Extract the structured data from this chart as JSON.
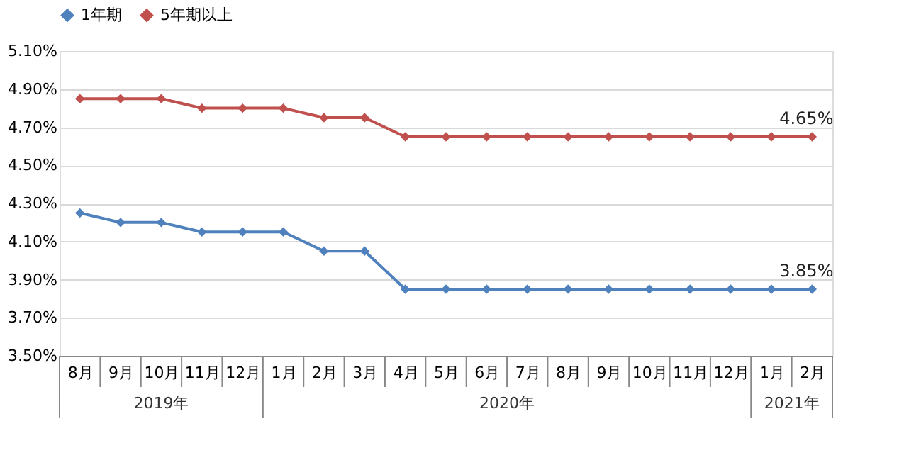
{
  "chart_data": {
    "type": "line",
    "categories": [
      "8月",
      "9月",
      "10月",
      "11月",
      "12月",
      "1月",
      "2月",
      "3月",
      "4月",
      "5月",
      "6月",
      "7月",
      "8月",
      "9月",
      "10月",
      "11月",
      "12月",
      "1月",
      "2月"
    ],
    "series": [
      {
        "name": "1年期",
        "color": "#4f81bd",
        "values": [
          4.25,
          4.2,
          4.2,
          4.15,
          4.15,
          4.15,
          4.05,
          4.05,
          3.85,
          3.85,
          3.85,
          3.85,
          3.85,
          3.85,
          3.85,
          3.85,
          3.85,
          3.85,
          3.85
        ],
        "value_labels": [
          null,
          null,
          null,
          null,
          null,
          null,
          null,
          null,
          null,
          null,
          null,
          null,
          null,
          null,
          null,
          null,
          null,
          null,
          "3.85%"
        ]
      },
      {
        "name": "5年期以上",
        "color": "#c0504d",
        "values": [
          4.85,
          4.85,
          4.85,
          4.8,
          4.8,
          4.8,
          4.75,
          4.75,
          4.65,
          4.65,
          4.65,
          4.65,
          4.65,
          4.65,
          4.65,
          4.65,
          4.65,
          4.65,
          4.65
        ],
        "value_labels": [
          null,
          null,
          null,
          null,
          null,
          null,
          null,
          null,
          null,
          null,
          null,
          null,
          null,
          null,
          null,
          null,
          null,
          null,
          "4.65%"
        ]
      }
    ],
    "ylim": [
      3.5,
      5.1
    ],
    "yticks": [
      {
        "value": 3.5,
        "label": "3.50%"
      },
      {
        "value": 3.7,
        "label": "3.70%"
      },
      {
        "value": 3.9,
        "label": "3.90%"
      },
      {
        "value": 4.1,
        "label": "4.10%"
      },
      {
        "value": 4.3,
        "label": "4.30%"
      },
      {
        "value": 4.5,
        "label": "4.50%"
      },
      {
        "value": 4.7,
        "label": "4.70%"
      },
      {
        "value": 4.9,
        "label": "4.90%"
      },
      {
        "value": 5.1,
        "label": "5.10%"
      }
    ],
    "annotations": [
      "2019年",
      "2020年",
      "2021年"
    ],
    "grid": "y",
    "legend": "top",
    "marker": "diamond",
    "line_style": "solid"
  }
}
